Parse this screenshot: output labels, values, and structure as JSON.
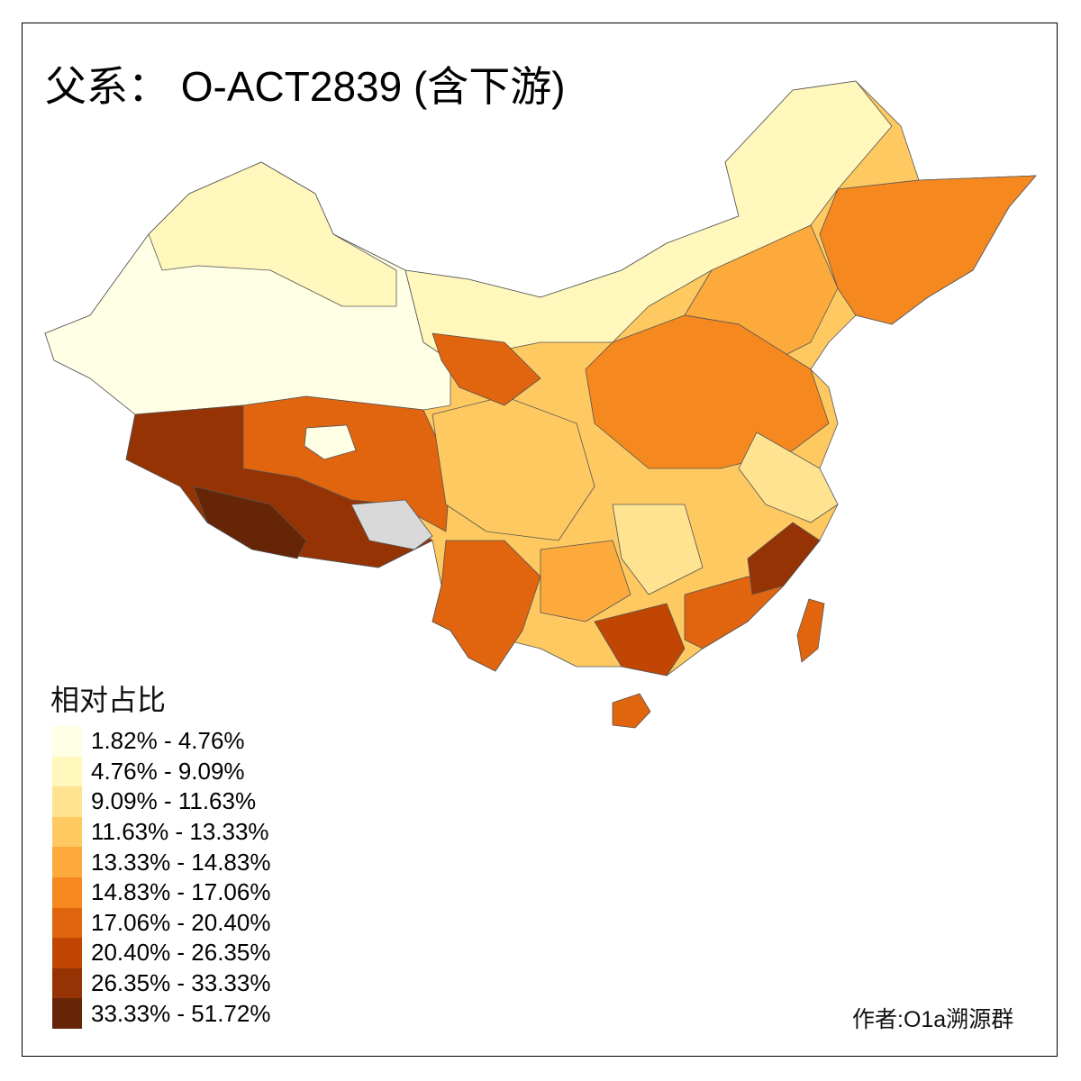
{
  "title": "父系： O-ACT2839 (含下游)",
  "legend": {
    "title": "相对占比",
    "items": [
      {
        "label": "1.82% - 4.76%",
        "color": "#FFFFE5"
      },
      {
        "label": "4.76% - 9.09%",
        "color": "#FFF7BC"
      },
      {
        "label": "9.09% - 11.63%",
        "color": "#FEE391"
      },
      {
        "label": "11.63% - 13.33%",
        "color": "#FEC960"
      },
      {
        "label": "13.33% - 14.83%",
        "color": "#FDAA3C"
      },
      {
        "label": "14.83% - 17.06%",
        "color": "#F5891F"
      },
      {
        "label": "17.06% - 20.40%",
        "color": "#E1640E"
      },
      {
        "label": "20.40% - 26.35%",
        "color": "#C14603"
      },
      {
        "label": "26.35% - 33.33%",
        "color": "#953304"
      },
      {
        "label": "33.33% - 51.72%",
        "color": "#662506"
      }
    ],
    "no_data_color": "#D9D9D9"
  },
  "author": "作者:O1a溯源群"
}
